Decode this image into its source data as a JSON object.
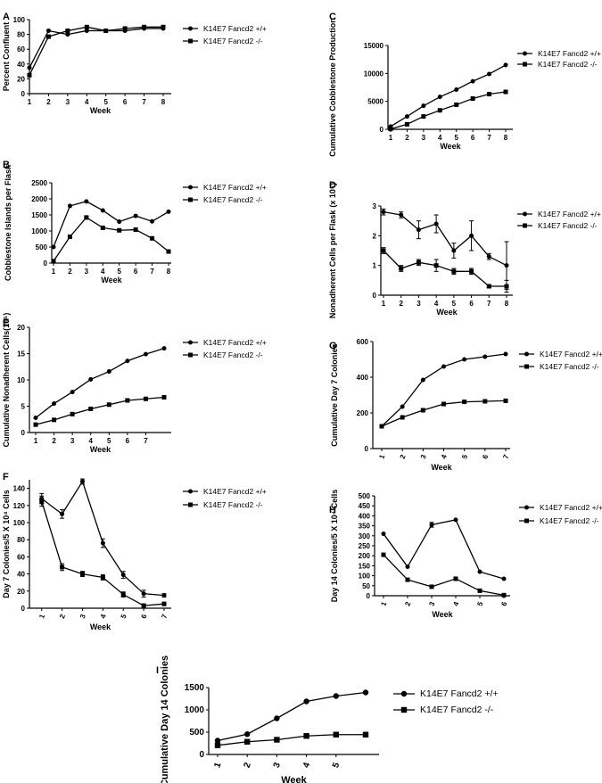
{
  "chart_data": [
    {
      "id": "A",
      "panel_label": "A",
      "type": "line",
      "xlabel": "Week",
      "ylabel": "Percent Confluent",
      "ylim": [
        0,
        100
      ],
      "yticks": [
        0,
        20,
        40,
        60,
        80,
        100
      ],
      "x_ticks": [
        "1",
        "2",
        "3",
        "4",
        "5",
        "6",
        "7",
        "8"
      ],
      "xlim": [
        1,
        8
      ],
      "series": [
        {
          "name": "K14E7 Fancd2 +/+",
          "marker": "circle",
          "x": [
            1,
            2,
            3,
            4,
            5,
            6,
            7,
            8
          ],
          "values": [
            35,
            85,
            80,
            85,
            85,
            85,
            88,
            88
          ]
        },
        {
          "name": "K14E7 Fancd2 -/-",
          "marker": "square",
          "x": [
            1,
            2,
            3,
            4,
            5,
            6,
            7,
            8
          ],
          "values": [
            25,
            77,
            85,
            90,
            85,
            88,
            90,
            90
          ]
        }
      ]
    },
    {
      "id": "B",
      "panel_label": "B",
      "type": "line",
      "xlabel": "Week",
      "ylabel": "Cobblestone Islands per Flask",
      "ylim": [
        0,
        2500
      ],
      "yticks": [
        0,
        500,
        1000,
        1500,
        2000,
        2500
      ],
      "x_ticks": [
        "1",
        "2",
        "3",
        "4",
        "5",
        "6",
        "7",
        "8"
      ],
      "xlim": [
        1,
        8
      ],
      "series": [
        {
          "name": "K14E7 Fancd2 +/+",
          "marker": "circle",
          "x": [
            1,
            2,
            3,
            4,
            5,
            6,
            7,
            8
          ],
          "values": [
            500,
            1780,
            1920,
            1640,
            1290,
            1470,
            1300,
            1600
          ]
        },
        {
          "name": "K14E7 Fancd2 -/-",
          "marker": "square",
          "x": [
            1,
            2,
            3,
            4,
            5,
            6,
            7,
            8
          ],
          "values": [
            60,
            820,
            1420,
            1100,
            1020,
            1040,
            770,
            360
          ]
        }
      ]
    },
    {
      "id": "C",
      "panel_label": "C",
      "type": "line",
      "xlabel": "Week",
      "ylabel": "Cumulative Cobblestone Production",
      "ylim": [
        0,
        15000
      ],
      "yticks": [
        0,
        5000,
        10000,
        15000
      ],
      "x_ticks": [
        "1",
        "2",
        "3",
        "4",
        "5",
        "6",
        "7",
        "8"
      ],
      "xlim": [
        1,
        8
      ],
      "series": [
        {
          "name": "K14E7 Fancd2 +/+",
          "marker": "circle",
          "x": [
            1,
            2,
            3,
            4,
            5,
            6,
            7,
            8
          ],
          "values": [
            500,
            2300,
            4200,
            5800,
            7100,
            8600,
            9900,
            11500
          ]
        },
        {
          "name": "K14E7 Fancd2 -/-",
          "marker": "square",
          "x": [
            1,
            2,
            3,
            4,
            5,
            6,
            7,
            8
          ],
          "values": [
            60,
            900,
            2300,
            3400,
            4400,
            5500,
            6300,
            6700
          ]
        }
      ]
    },
    {
      "id": "D",
      "panel_label": "D",
      "type": "line",
      "xlabel": "Week",
      "ylabel": "Nonadherent Cells per Flask",
      "ylabel_unit": "(x 10⁵)",
      "ylim": [
        0,
        3
      ],
      "yticks": [
        0,
        1,
        2,
        3
      ],
      "x_ticks": [
        "1",
        "2",
        "3",
        "4",
        "5",
        "6",
        "7",
        "8"
      ],
      "xlim": [
        1,
        8
      ],
      "series": [
        {
          "name": "K14E7 Fancd2 +/+",
          "marker": "circle",
          "x": [
            1,
            2,
            3,
            4,
            5,
            6,
            7,
            8
          ],
          "values": [
            2.8,
            2.7,
            2.2,
            2.4,
            1.5,
            2.0,
            1.3,
            1.0
          ],
          "errors": [
            0.1,
            0.1,
            0.3,
            0.3,
            0.25,
            0.5,
            0.1,
            0.8
          ]
        },
        {
          "name": "K14E7 Fancd2 -/-",
          "marker": "square",
          "x": [
            1,
            2,
            3,
            4,
            5,
            6,
            7,
            8
          ],
          "values": [
            1.5,
            0.9,
            1.1,
            1.0,
            0.8,
            0.8,
            0.3,
            0.3
          ],
          "errors": [
            0.1,
            0.1,
            0.1,
            0.2,
            0.1,
            0.1,
            0.05,
            0.2
          ]
        }
      ]
    },
    {
      "id": "E",
      "panel_label": "E",
      "type": "line",
      "xlabel": "Week",
      "ylabel": "Cumulative Nonadherent Cells(10⁵)",
      "ylim": [
        0,
        20
      ],
      "yticks": [
        0,
        5,
        10,
        15,
        20
      ],
      "x_ticks": [
        "1",
        "2",
        "3",
        "4",
        "5",
        "6",
        "7"
      ],
      "xlim": [
        1,
        8
      ],
      "series": [
        {
          "name": "K14E7 Fancd2 +/+",
          "marker": "circle",
          "x": [
            1,
            2,
            3,
            4,
            5,
            6,
            7,
            8
          ],
          "values": [
            2.8,
            5.5,
            7.7,
            10.1,
            11.6,
            13.6,
            14.9,
            16.0
          ]
        },
        {
          "name": "K14E7 Fancd2 -/-",
          "marker": "square",
          "x": [
            1,
            2,
            3,
            4,
            5,
            6,
            7,
            8
          ],
          "values": [
            1.5,
            2.4,
            3.5,
            4.5,
            5.3,
            6.1,
            6.4,
            6.7
          ]
        }
      ]
    },
    {
      "id": "F",
      "panel_label": "F",
      "type": "line",
      "xlabel": "Week",
      "ylabel": "Day 7 Colonies/5 X 10⁴ Cells",
      "ylim": [
        0,
        150
      ],
      "yticks": [
        0,
        20,
        40,
        60,
        80,
        100,
        120,
        140
      ],
      "x_ticks": [
        "1",
        "2",
        "3",
        "4",
        "5",
        "6",
        "7"
      ],
      "xlim": [
        0.4,
        7
      ],
      "series": [
        {
          "name": "K14E7 Fancd2 +/+",
          "marker": "circle",
          "x": [
            1,
            2,
            3,
            4,
            5,
            6,
            7
          ],
          "values": [
            128,
            110,
            148,
            76,
            39,
            17,
            15
          ],
          "errors": [
            6,
            5,
            3,
            5,
            4,
            4,
            2
          ]
        },
        {
          "name": "K14E7 Fancd2 -/-",
          "marker": "square",
          "x": [
            1,
            2,
            3,
            4,
            5,
            6,
            7
          ],
          "values": [
            125,
            48,
            40,
            36,
            16,
            3,
            5
          ],
          "errors": [
            6,
            4,
            3,
            3,
            3,
            2,
            2
          ]
        }
      ]
    },
    {
      "id": "G",
      "panel_label": "G",
      "type": "line",
      "xlabel": "Week",
      "ylabel": "Cumulative Day 7 Colonies",
      "ylim": [
        0,
        600
      ],
      "yticks": [
        0,
        200,
        400,
        600
      ],
      "x_ticks": [
        "1",
        "2",
        "3",
        "4",
        "5",
        "6",
        "7"
      ],
      "xlim": [
        1,
        7
      ],
      "series": [
        {
          "name": "K14E7 Fancd2 +/+",
          "marker": "circle",
          "x": [
            1,
            2,
            3,
            4,
            5,
            6,
            7
          ],
          "values": [
            125,
            235,
            385,
            460,
            500,
            515,
            530
          ]
        },
        {
          "name": "K14E7 Fancd2 -/-",
          "marker": "square",
          "x": [
            1,
            2,
            3,
            4,
            5,
            6,
            7
          ],
          "values": [
            125,
            175,
            215,
            250,
            262,
            265,
            268
          ]
        }
      ]
    },
    {
      "id": "H",
      "panel_label": "H",
      "type": "line",
      "xlabel": "Week",
      "ylabel": "Day 14 Colonies/5 X 10⁴ Cells",
      "ylim": [
        0,
        500
      ],
      "yticks": [
        0,
        50,
        100,
        150,
        200,
        250,
        300,
        350,
        400,
        450,
        500
      ],
      "x_ticks": [
        "1",
        "2",
        "3",
        "4",
        "5",
        "6"
      ],
      "xlim": [
        1,
        6
      ],
      "series": [
        {
          "name": "K14E7 Fancd2 +/+",
          "marker": "circle",
          "x": [
            1,
            2,
            3,
            4,
            5,
            6
          ],
          "values": [
            310,
            145,
            355,
            380,
            120,
            85
          ],
          "errors": [
            0,
            0,
            12,
            0,
            0,
            0
          ]
        },
        {
          "name": "K14E7 Fancd2 -/-",
          "marker": "square",
          "x": [
            1,
            2,
            3,
            4,
            5,
            6
          ],
          "values": [
            205,
            80,
            45,
            85,
            25,
            3
          ],
          "errors": [
            0,
            0,
            0,
            0,
            0,
            0
          ]
        }
      ]
    },
    {
      "id": "I",
      "panel_label": "I",
      "type": "line",
      "xlabel": "Week",
      "ylabel": "Cumulative Day 14 Colonies",
      "ylim": [
        0,
        1500
      ],
      "yticks": [
        0,
        500,
        1000,
        1500
      ],
      "x_ticks": [
        "1",
        "2",
        "3",
        "4",
        "5"
      ],
      "xlim": [
        1,
        6
      ],
      "series": [
        {
          "name": "K14E7 Fancd2 +/+",
          "marker": "circle",
          "x": [
            1,
            2,
            3,
            4,
            5,
            6
          ],
          "values": [
            310,
            455,
            810,
            1190,
            1310,
            1390
          ]
        },
        {
          "name": "K14E7 Fancd2 -/-",
          "marker": "square",
          "x": [
            1,
            2,
            3,
            4,
            5,
            6
          ],
          "values": [
            205,
            285,
            330,
            415,
            445,
            445
          ]
        }
      ]
    }
  ]
}
